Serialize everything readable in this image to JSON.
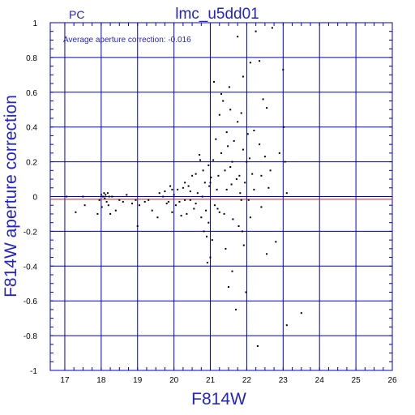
{
  "colors": {
    "axis": "#0000cc",
    "text": "#2323d0",
    "points": "#000000",
    "zero_line": "#cc2222"
  },
  "chart_data": {
    "type": "scatter",
    "title": "lmc_u5dd01",
    "camera_label": "PC",
    "annotation": "Average aperture correction: -0.016",
    "xlabel": "F814W",
    "ylabel": "F814W aperture correction",
    "xlim": [
      16.6,
      26
    ],
    "ylim": [
      -1,
      1
    ],
    "xticks": [
      17,
      18,
      19,
      20,
      21,
      22,
      23,
      24,
      25,
      26
    ],
    "yticks": [
      -1,
      -0.8,
      -0.6,
      -0.4,
      -0.2,
      0,
      0.2,
      0.4,
      0.6,
      0.8,
      1
    ],
    "ytick_labels": [
      "-1",
      "-0.8",
      "-0.6",
      "-0.4",
      "-0.2",
      "0",
      "0.2",
      "0.4",
      "0.6",
      "0.8",
      "1"
    ],
    "grid": true,
    "average_line": -0.016,
    "points": [
      [
        17.05,
        0.0
      ],
      [
        17.3,
        -0.09
      ],
      [
        17.5,
        0.0
      ],
      [
        17.55,
        -0.05
      ],
      [
        17.9,
        -0.1
      ],
      [
        17.95,
        -0.02
      ],
      [
        18.0,
        0.01
      ],
      [
        18.02,
        -0.06
      ],
      [
        18.05,
        0.0
      ],
      [
        18.08,
        0.02
      ],
      [
        18.1,
        -0.01
      ],
      [
        18.12,
        0.01
      ],
      [
        18.15,
        -0.03
      ],
      [
        18.18,
        0.02
      ],
      [
        18.2,
        -0.05
      ],
      [
        18.22,
        0.0
      ],
      [
        18.25,
        -0.1
      ],
      [
        18.3,
        0.0
      ],
      [
        18.4,
        -0.08
      ],
      [
        18.5,
        -0.02
      ],
      [
        18.6,
        -0.03
      ],
      [
        18.7,
        0.01
      ],
      [
        18.85,
        -0.04
      ],
      [
        18.95,
        -0.02
      ],
      [
        19.0,
        -0.17
      ],
      [
        19.05,
        -0.05
      ],
      [
        19.2,
        -0.03
      ],
      [
        19.3,
        -0.02
      ],
      [
        19.4,
        -0.08
      ],
      [
        19.55,
        -0.12
      ],
      [
        19.6,
        0.02
      ],
      [
        19.7,
        0.0
      ],
      [
        19.75,
        0.03
      ],
      [
        19.8,
        -0.04
      ],
      [
        19.85,
        -0.03
      ],
      [
        19.9,
        0.06
      ],
      [
        19.95,
        -0.09
      ],
      [
        20.0,
        0.01
      ],
      [
        20.05,
        -0.05
      ],
      [
        20.1,
        0.04
      ],
      [
        20.15,
        -0.03
      ],
      [
        20.2,
        -0.11
      ],
      [
        20.25,
        0.05
      ],
      [
        20.3,
        0.08
      ],
      [
        20.35,
        -0.1
      ],
      [
        20.4,
        0.06
      ],
      [
        20.45,
        -0.02
      ],
      [
        20.5,
        0.12
      ],
      [
        20.55,
        -0.07
      ],
      [
        20.6,
        0.13
      ],
      [
        20.65,
        0.02
      ],
      [
        20.7,
        0.24
      ],
      [
        20.72,
        0.21
      ],
      [
        20.75,
        -0.12
      ],
      [
        20.78,
        0.0
      ],
      [
        20.8,
        0.15
      ],
      [
        20.82,
        -0.2
      ],
      [
        20.85,
        0.08
      ],
      [
        20.88,
        -0.08
      ],
      [
        20.9,
        -0.23
      ],
      [
        20.92,
        -0.38
      ],
      [
        20.95,
        0.18
      ],
      [
        20.97,
        0.06
      ],
      [
        21.0,
        -0.35
      ],
      [
        21.02,
        0.11
      ],
      [
        21.05,
        -0.25
      ],
      [
        21.08,
        0.21
      ],
      [
        21.1,
        0.66
      ],
      [
        21.12,
        -0.05
      ],
      [
        21.15,
        0.33
      ],
      [
        21.18,
        0.04
      ],
      [
        21.2,
        -0.07
      ],
      [
        21.22,
        0.12
      ],
      [
        21.25,
        0.47
      ],
      [
        21.3,
        0.25
      ],
      [
        21.35,
        0.55
      ],
      [
        21.38,
        -0.1
      ],
      [
        21.4,
        0.15
      ],
      [
        21.42,
        -0.3
      ],
      [
        21.45,
        0.04
      ],
      [
        21.48,
        0.29
      ],
      [
        21.5,
        -0.52
      ],
      [
        21.52,
        0.63
      ],
      [
        21.55,
        0.5
      ],
      [
        21.58,
        0.07
      ],
      [
        21.6,
        0.2
      ],
      [
        21.62,
        -0.13
      ],
      [
        21.65,
        0.32
      ],
      [
        21.7,
        -0.65
      ],
      [
        21.72,
        0.1
      ],
      [
        21.75,
        0.43
      ],
      [
        21.78,
        -0.17
      ],
      [
        21.8,
        0.12
      ],
      [
        21.82,
        0.02
      ],
      [
        21.85,
        0.48
      ],
      [
        21.88,
        -0.2
      ],
      [
        21.9,
        0.27
      ],
      [
        21.92,
        -0.28
      ],
      [
        21.95,
        0.08
      ],
      [
        21.98,
        -0.55
      ],
      [
        22.0,
        0.2
      ],
      [
        22.03,
        0.36
      ],
      [
        22.05,
        -0.02
      ],
      [
        22.08,
        0.22
      ],
      [
        22.1,
        -0.12
      ],
      [
        22.15,
        0.13
      ],
      [
        22.2,
        0.04
      ],
      [
        22.25,
        0.95
      ],
      [
        22.3,
        -0.86
      ],
      [
        22.35,
        0.3
      ],
      [
        22.4,
        0.12
      ],
      [
        22.45,
        0.56
      ],
      [
        22.5,
        0.23
      ],
      [
        22.55,
        -0.33
      ],
      [
        22.6,
        0.05
      ],
      [
        22.65,
        0.15
      ],
      [
        22.7,
        0.97
      ],
      [
        22.8,
        -0.26
      ],
      [
        22.9,
        0.25
      ],
      [
        23.0,
        0.73
      ],
      [
        23.02,
        0.4
      ],
      [
        23.05,
        0.2
      ],
      [
        23.1,
        0.02
      ],
      [
        23.1,
        -0.74
      ],
      [
        23.5,
        -0.67
      ],
      [
        22.1,
        0.77
      ],
      [
        21.75,
        0.92
      ],
      [
        22.35,
        0.78
      ],
      [
        21.6,
        -0.43
      ],
      [
        22.55,
        0.51
      ],
      [
        21.9,
        0.69
      ],
      [
        21.3,
        0.59
      ],
      [
        20.95,
        -0.15
      ],
      [
        21.45,
        0.37
      ],
      [
        22.2,
        0.38
      ],
      [
        21.0,
        0.08
      ],
      [
        21.25,
        -0.09
      ],
      [
        21.55,
        0.17
      ],
      [
        21.85,
        -0.02
      ],
      [
        22.4,
        -0.06
      ],
      [
        20.6,
        -0.04
      ],
      [
        20.3,
        -0.02
      ],
      [
        20.45,
        0.03
      ],
      [
        19.95,
        0.04
      ]
    ]
  }
}
